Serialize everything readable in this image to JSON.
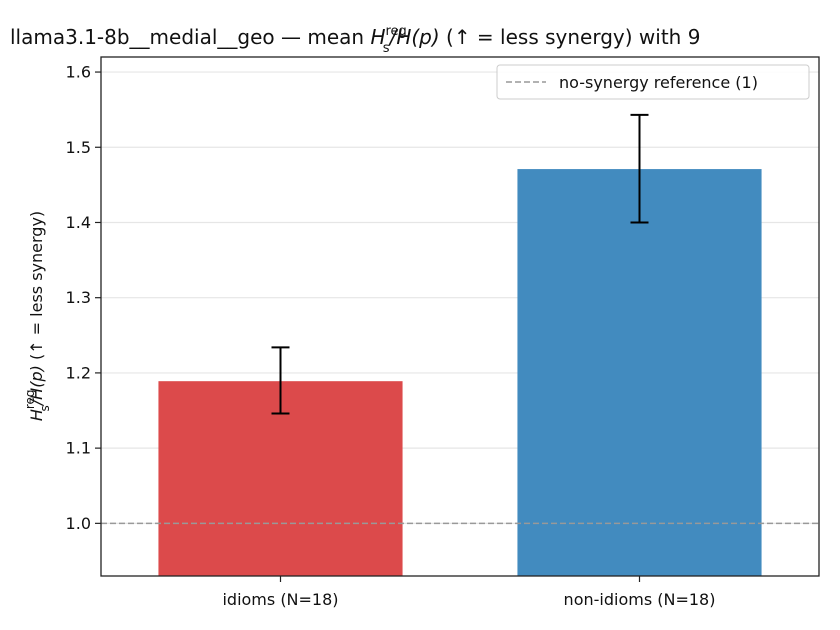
{
  "chart_data": {
    "type": "bar",
    "title": {
      "prefix": "llama3.1-8b__medial__geo — mean ",
      "math_base": "H",
      "math_sup": "reg",
      "math_sub": "s",
      "math_rest": "/H(p)",
      "suffix": "  (↑ = less synergy) with 9"
    },
    "ylabel": {
      "math_base": "H",
      "math_sup": "reg",
      "math_sub": "s",
      "math_rest": "/H(p)",
      "suffix": "  (↑ = less synergy)"
    },
    "categories": [
      "idioms (N=18)",
      "non-idioms (N=18)"
    ],
    "values": [
      1.189,
      1.471
    ],
    "error_low": [
      1.146,
      1.4
    ],
    "error_high": [
      1.234,
      1.543
    ],
    "bar_colors": [
      "#dc4a4b",
      "#428bbf"
    ],
    "ylim": [
      0.93,
      1.62
    ],
    "yticks": [
      1.0,
      1.1,
      1.2,
      1.3,
      1.4,
      1.5,
      1.6
    ],
    "ytick_labels": [
      "1.0",
      "1.1",
      "1.2",
      "1.3",
      "1.4",
      "1.5",
      "1.6"
    ],
    "reference_line": {
      "value": 1.0,
      "color": "#999999",
      "style": "dashed"
    },
    "legend": {
      "label": "no-synergy reference (1)",
      "position": "top-right"
    },
    "grid": "y-only"
  }
}
